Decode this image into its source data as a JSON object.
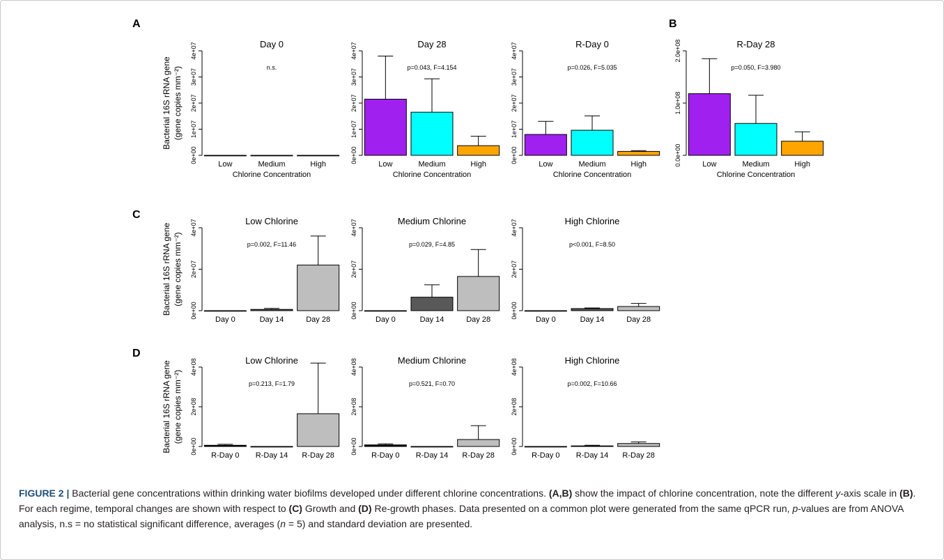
{
  "colors": {
    "low": "#a020f0",
    "medium": "#00ffff",
    "high": "#ffa500",
    "day0": "#000000",
    "day14": "#595959",
    "day28": "#bebebe",
    "caption_lead": "#1f4e79"
  },
  "figure": {
    "ylabel_line1": "Bacterial 16S rRNA gene",
    "ylabel_line2": "(gene copies  mm⁻²)",
    "xlabel_row1": "Chlorine Concentration"
  },
  "chart_data": [
    {
      "panel_letter": "A",
      "type": "bar",
      "title": "Day 0",
      "stat": "n.s.",
      "xlabel": "Chlorine Concentration",
      "categories": [
        "Low",
        "Medium",
        "High"
      ],
      "values": [
        0,
        0,
        0
      ],
      "errors": [
        0,
        0,
        0
      ],
      "colors": [
        "#a020f0",
        "#00ffff",
        "#ffa500"
      ],
      "ylim": [
        0,
        40000000
      ],
      "yticks": [
        "0e+00",
        "1e+07",
        "2e+07",
        "3e+07",
        "4e+07"
      ]
    },
    {
      "panel_letter": "",
      "type": "bar",
      "title": "Day 28",
      "stat": "p=0.043, F=4.154",
      "xlabel": "Chlorine Concentration",
      "categories": [
        "Low",
        "Medium",
        "High"
      ],
      "values": [
        21500000,
        16500000,
        3700000
      ],
      "errors": [
        16500000,
        12800000,
        3600000
      ],
      "colors": [
        "#a020f0",
        "#00ffff",
        "#ffa500"
      ],
      "ylim": [
        0,
        40000000
      ],
      "yticks": [
        "0e+00",
        "1e+07",
        "2e+07",
        "3e+07",
        "4e+07"
      ]
    },
    {
      "panel_letter": "",
      "type": "bar",
      "title": "R-Day 0",
      "stat": "p=0.026, F=5.035",
      "xlabel": "Chlorine Concentration",
      "categories": [
        "Low",
        "Medium",
        "High"
      ],
      "values": [
        8000000,
        9600000,
        1500000
      ],
      "errors": [
        5000000,
        5500000,
        300000
      ],
      "colors": [
        "#a020f0",
        "#00ffff",
        "#ffa500"
      ],
      "ylim": [
        0,
        40000000
      ],
      "yticks": [
        "0e+00",
        "1e+07",
        "2e+07",
        "3e+07",
        "4e+07"
      ]
    },
    {
      "panel_letter": "B",
      "type": "bar",
      "title": "R-Day 28",
      "stat": "p=0.050, F=3.980",
      "xlabel": "Chlorine Concentration",
      "categories": [
        "Low",
        "Medium",
        "High"
      ],
      "values": [
        118000000,
        61000000,
        27000000
      ],
      "errors": [
        67000000,
        54000000,
        18000000
      ],
      "colors": [
        "#a020f0",
        "#00ffff",
        "#ffa500"
      ],
      "ylim": [
        0,
        200000000
      ],
      "yticks": [
        "0.0e+00",
        "1.0e+08",
        "2.0e+08"
      ]
    },
    {
      "panel_letter": "C",
      "type": "bar",
      "title": "Low Chlorine",
      "stat": "p=0.002, F=11.46",
      "xlabel": "",
      "categories": [
        "Day 0",
        "Day 14",
        "Day 28"
      ],
      "values": [
        0,
        600000,
        22000000
      ],
      "errors": [
        0,
        500000,
        14000000
      ],
      "colors": [
        "#000000",
        "#595959",
        "#bebebe"
      ],
      "ylim": [
        0,
        40000000
      ],
      "yticks": [
        "0e+00",
        "2e+07",
        "4e+07"
      ]
    },
    {
      "panel_letter": "",
      "type": "bar",
      "title": "Medium Chlorine",
      "stat": "p=0.029, F=4.85",
      "xlabel": "",
      "categories": [
        "Day 0",
        "Day 14",
        "Day 28"
      ],
      "values": [
        0,
        6500000,
        16500000
      ],
      "errors": [
        0,
        6000000,
        13000000
      ],
      "colors": [
        "#000000",
        "#595959",
        "#bebebe"
      ],
      "ylim": [
        0,
        40000000
      ],
      "yticks": [
        "0e+00",
        "2e+07",
        "4e+07"
      ]
    },
    {
      "panel_letter": "",
      "type": "bar",
      "title": "High Chlorine",
      "stat": "p<0.001, F=8.50",
      "xlabel": "",
      "categories": [
        "Day 0",
        "Day 14",
        "Day 28"
      ],
      "values": [
        0,
        1000000,
        2000000
      ],
      "errors": [
        0,
        300000,
        1500000
      ],
      "colors": [
        "#000000",
        "#595959",
        "#bebebe"
      ],
      "ylim": [
        0,
        40000000
      ],
      "yticks": [
        "0e+00",
        "2e+07",
        "4e+07"
      ]
    },
    {
      "panel_letter": "D",
      "type": "bar",
      "title": "Low Chlorine",
      "stat": "p=0.213, F=1.79",
      "xlabel": "",
      "categories": [
        "R-Day 0",
        "R-Day 14",
        "R-Day 28"
      ],
      "values": [
        6000000,
        0,
        165000000
      ],
      "errors": [
        5000000,
        0,
        255000000
      ],
      "colors": [
        "#000000",
        "#595959",
        "#bebebe"
      ],
      "ylim": [
        0,
        400000000
      ],
      "yticks": [
        "0e+00",
        "2e+08",
        "4e+08"
      ]
    },
    {
      "panel_letter": "",
      "type": "bar",
      "title": "Medium Chlorine",
      "stat": "p=0.521, F=0.70",
      "xlabel": "",
      "categories": [
        "R-Day 0",
        "R-Day 14",
        "R-Day 28"
      ],
      "values": [
        8000000,
        0,
        35000000
      ],
      "errors": [
        5000000,
        0,
        70000000
      ],
      "colors": [
        "#000000",
        "#595959",
        "#bebebe"
      ],
      "ylim": [
        0,
        400000000
      ],
      "yticks": [
        "0e+00",
        "2e+08",
        "4e+08"
      ]
    },
    {
      "panel_letter": "",
      "type": "bar",
      "title": "High Chlorine",
      "stat": "p=0.002, F=10.66",
      "xlabel": "",
      "categories": [
        "R-Day 0",
        "R-Day 14",
        "R-Day 28"
      ],
      "values": [
        0,
        3000000,
        15000000
      ],
      "errors": [
        0,
        3000000,
        8000000
      ],
      "colors": [
        "#000000",
        "#595959",
        "#bebebe"
      ],
      "ylim": [
        0,
        400000000
      ],
      "yticks": [
        "0e+00",
        "2e+08",
        "4e+08"
      ]
    }
  ],
  "caption": {
    "lead": "FIGURE 2 |",
    "t1": " Bacterial gene concentrations within drinking water biofilms developed under different chlorine concentrations. ",
    "ref_ab": "(A,B)",
    "t2": " show the impact of chlorine concentration, note the different ",
    "y_italic": "y",
    "t3": "-axis scale in ",
    "ref_b": "(B)",
    "t4": ". For each regime, temporal changes are shown with respect to ",
    "ref_c": "(C)",
    "t5": " Growth and ",
    "ref_d": "(D)",
    "t6": " Re-growth phases. Data presented on a common plot were generated from the same qPCR run, ",
    "p_italic": "p",
    "t7": "-values are from ANOVA analysis, n.s = no statistical significant difference, averages (",
    "n_italic": "n",
    "t8": " = 5) and standard deviation are presented."
  }
}
